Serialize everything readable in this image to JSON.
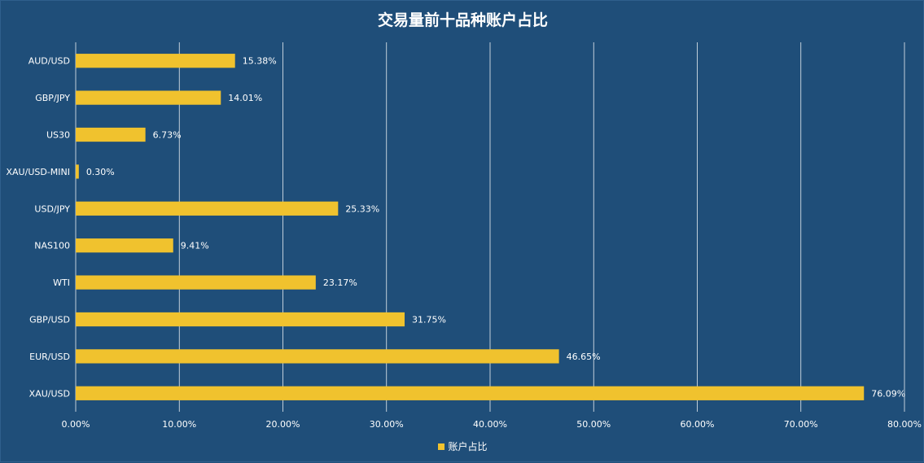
{
  "chart_data": {
    "type": "bar",
    "orientation": "horizontal",
    "title": "交易量前十品种账户占比",
    "categories": [
      "AUD/USD",
      "GBP/JPY",
      "US30",
      "XAU/USD-MINI",
      "USD/JPY",
      "NAS100",
      "WTI",
      "GBP/USD",
      "EUR/USD",
      "XAU/USD"
    ],
    "series": [
      {
        "name": "账户占比",
        "values": [
          15.38,
          14.01,
          6.73,
          0.3,
          25.33,
          9.41,
          23.17,
          31.75,
          46.65,
          76.09
        ],
        "labels": [
          "15.38%",
          "14.01%",
          "6.73%",
          "0.30%",
          "25.33%",
          "9.41%",
          "23.17%",
          "31.75%",
          "46.65%",
          "76.09%"
        ]
      }
    ],
    "xlim": [
      0,
      80
    ],
    "x_ticks": [
      "0.00%",
      "10.00%",
      "20.00%",
      "30.00%",
      "40.00%",
      "50.00%",
      "60.00%",
      "70.00%",
      "80.00%"
    ],
    "grid": true,
    "legend_position": "bottom",
    "colors": {
      "background": "#1f4e79",
      "bar": "#f0c22e",
      "grid": "#ffffff",
      "text": "#ffffff"
    }
  }
}
